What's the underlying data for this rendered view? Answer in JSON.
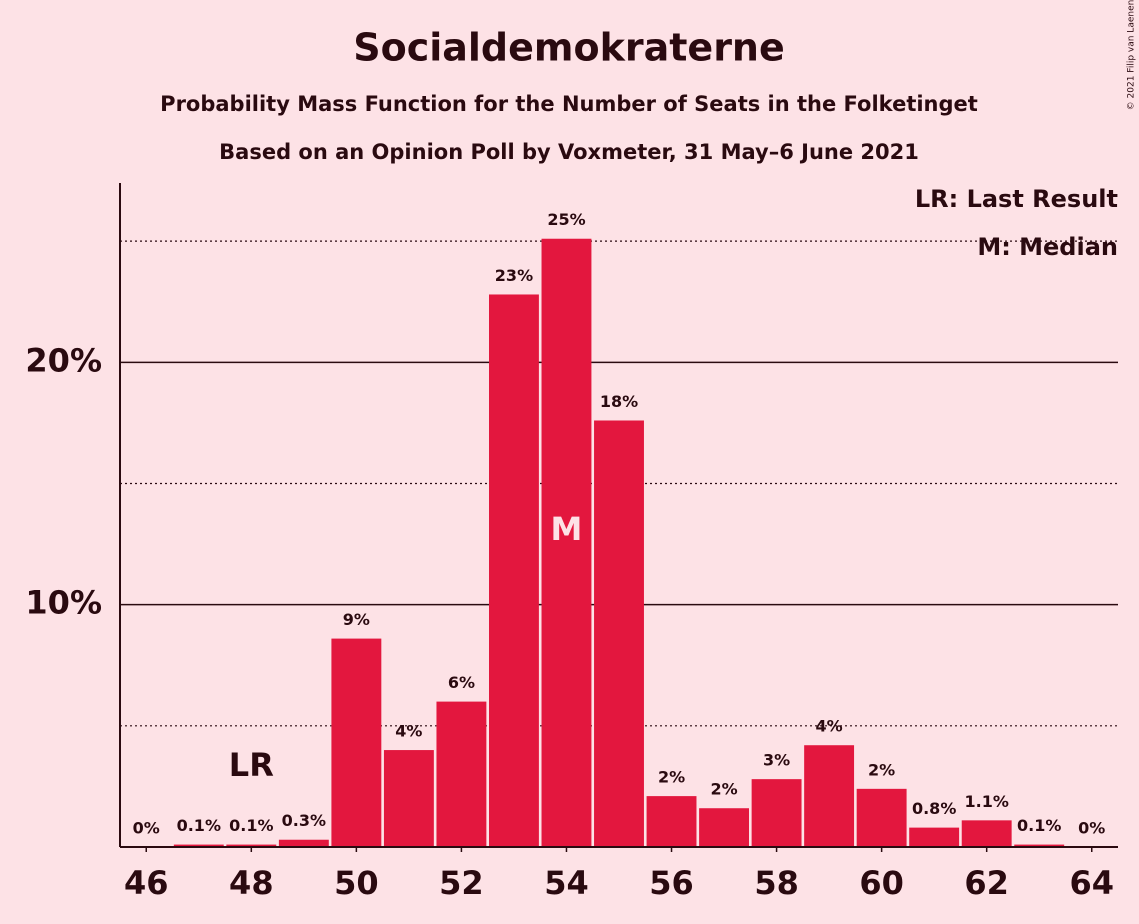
{
  "chart_data": {
    "type": "bar",
    "title": "Socialdemokraterne",
    "subtitle": "Probability Mass Function for the Number of Seats in the Folketinget",
    "subtitle2": "Based on an Opinion Poll by Voxmeter, 31 May–6 June 2021",
    "copyright": "© 2021 Filip van Laenen",
    "x": [
      46,
      47,
      48,
      49,
      50,
      51,
      52,
      53,
      54,
      55,
      56,
      57,
      58,
      59,
      60,
      61,
      62,
      63,
      64
    ],
    "values": [
      0,
      0.1,
      0.1,
      0.3,
      8.6,
      4.0,
      6.0,
      22.8,
      25.1,
      17.6,
      2.1,
      1.6,
      2.8,
      4.2,
      2.4,
      0.8,
      1.1,
      0.1,
      0
    ],
    "value_labels": [
      "0%",
      "0.1%",
      "0.1%",
      "0.3%",
      "9%",
      "4%",
      "6%",
      "23%",
      "25%",
      "18%",
      "2%",
      "2%",
      "3%",
      "4%",
      "2%",
      "0.8%",
      "1.1%",
      "0.1%",
      "0%"
    ],
    "color": "#e3173e",
    "xlim": [
      45.5,
      64.5
    ],
    "xticks": [
      46,
      48,
      50,
      52,
      54,
      56,
      58,
      60,
      62,
      64
    ],
    "ylim": [
      0,
      27.4
    ],
    "yticks": [
      {
        "value": 10,
        "label": "10%"
      },
      {
        "value": 20,
        "label": "20%"
      }
    ],
    "minor_gridlines": [
      5,
      15,
      25
    ],
    "grid": true,
    "annotations": [
      {
        "text": "LR",
        "x": 48
      },
      {
        "text": "M",
        "x": 54
      }
    ],
    "legend": [
      "LR: Last Result",
      "M: Median"
    ],
    "legend_position": "top-right"
  }
}
